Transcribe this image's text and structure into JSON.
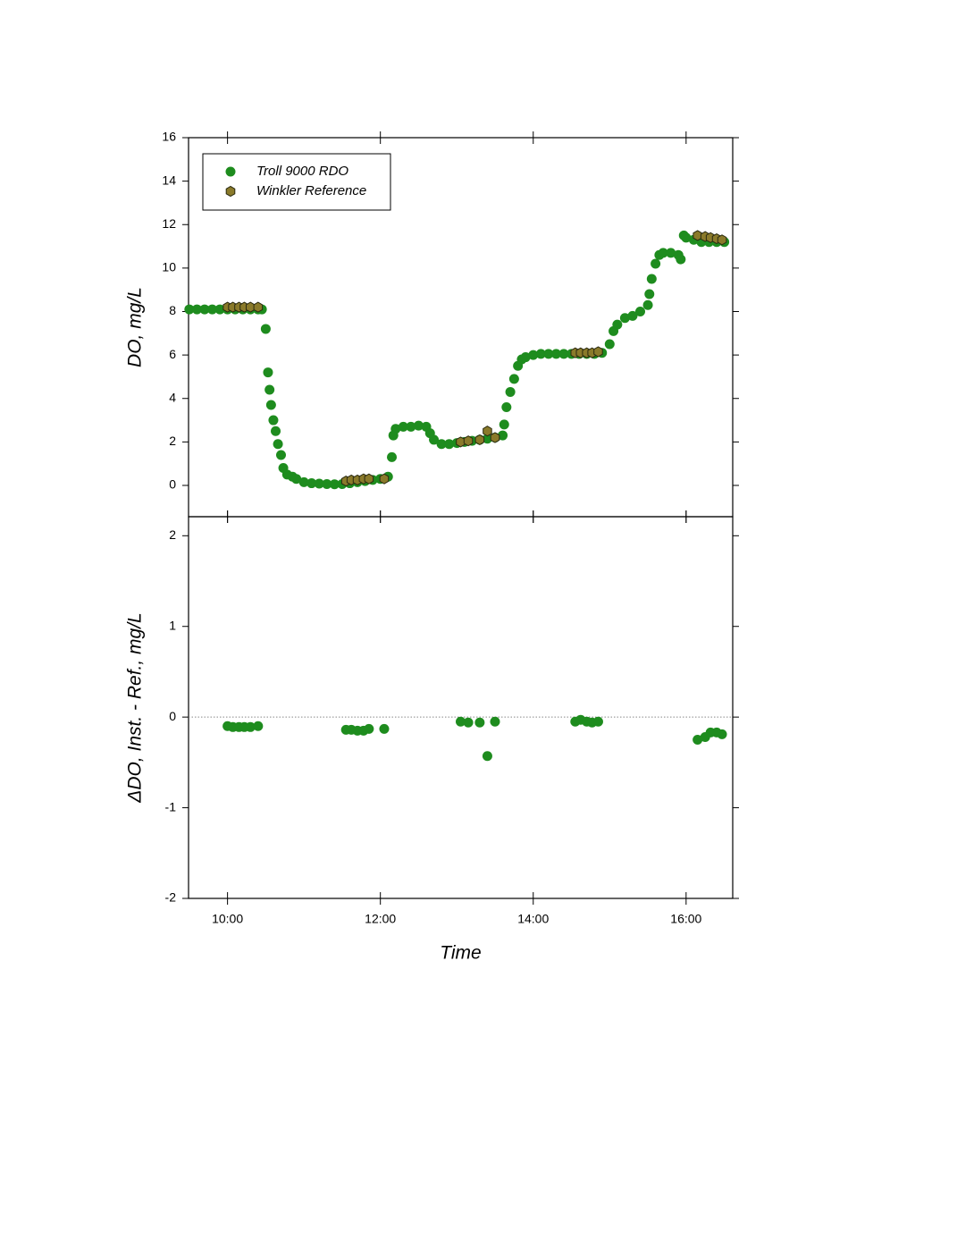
{
  "chart_data": [
    {
      "type": "scatter",
      "ylabel": "DO, mg/L",
      "ylim": [
        -1.44,
        16
      ],
      "yticks": [
        0,
        2,
        4,
        6,
        8,
        10,
        12,
        14,
        16
      ],
      "legend": "upper left",
      "series": [
        {
          "name": "Troll 9000 RDO",
          "color": "#1e8c1e",
          "marker": "circle",
          "x": [
            9.5,
            9.6,
            9.7,
            9.8,
            9.9,
            10.0,
            10.1,
            10.2,
            10.3,
            10.4,
            10.45,
            10.5,
            10.53,
            10.55,
            10.57,
            10.6,
            10.63,
            10.66,
            10.7,
            10.73,
            10.78,
            10.85,
            10.9,
            11.0,
            11.1,
            11.2,
            11.3,
            11.4,
            11.5,
            11.6,
            11.7,
            11.8,
            11.9,
            12.0,
            12.1,
            12.15,
            12.17,
            12.2,
            12.3,
            12.4,
            12.5,
            12.6,
            12.65,
            12.7,
            12.8,
            12.9,
            13.0,
            13.1,
            13.2,
            13.3,
            13.4,
            13.5,
            13.6,
            13.62,
            13.65,
            13.7,
            13.75,
            13.8,
            13.85,
            13.9,
            14.0,
            14.1,
            14.2,
            14.3,
            14.4,
            14.5,
            14.6,
            14.7,
            14.8,
            14.9,
            15.0,
            15.05,
            15.1,
            15.2,
            15.3,
            15.4,
            15.5,
            15.52,
            15.55,
            15.6,
            15.65,
            15.7,
            15.8,
            15.9,
            15.93,
            15.97,
            16.0,
            16.1,
            16.2,
            16.3,
            16.4,
            16.5
          ],
          "values": [
            8.1,
            8.1,
            8.1,
            8.1,
            8.1,
            8.1,
            8.1,
            8.1,
            8.1,
            8.1,
            8.1,
            7.2,
            5.2,
            4.4,
            3.7,
            3.0,
            2.5,
            1.9,
            1.4,
            0.8,
            0.5,
            0.4,
            0.3,
            0.15,
            0.1,
            0.08,
            0.06,
            0.05,
            0.06,
            0.1,
            0.15,
            0.2,
            0.25,
            0.3,
            0.4,
            1.3,
            2.3,
            2.6,
            2.7,
            2.7,
            2.75,
            2.7,
            2.4,
            2.1,
            1.9,
            1.9,
            1.95,
            2.0,
            2.05,
            2.1,
            2.15,
            2.2,
            2.3,
            2.8,
            3.6,
            4.3,
            4.9,
            5.5,
            5.8,
            5.9,
            6.0,
            6.05,
            6.05,
            6.05,
            6.05,
            6.05,
            6.05,
            6.05,
            6.05,
            6.1,
            6.5,
            7.1,
            7.4,
            7.7,
            7.8,
            8.0,
            8.3,
            8.8,
            9.5,
            10.2,
            10.6,
            10.7,
            10.7,
            10.6,
            10.4,
            11.5,
            11.4,
            11.3,
            11.2,
            11.2,
            11.2,
            11.2
          ]
        },
        {
          "name": "Winkler Reference",
          "color": "#8a7a2a",
          "marker": "hexagon",
          "x": [
            10.0,
            10.07,
            10.15,
            10.22,
            10.3,
            10.4,
            11.55,
            11.62,
            11.7,
            11.78,
            11.85,
            12.05,
            13.05,
            13.15,
            13.3,
            13.4,
            13.5,
            14.55,
            14.62,
            14.7,
            14.77,
            14.85,
            16.15,
            16.25,
            16.32,
            16.4,
            16.47
          ],
          "values": [
            8.2,
            8.2,
            8.2,
            8.2,
            8.2,
            8.2,
            0.2,
            0.25,
            0.25,
            0.3,
            0.3,
            0.3,
            2.0,
            2.05,
            2.1,
            2.5,
            2.2,
            6.1,
            6.1,
            6.1,
            6.1,
            6.15,
            11.5,
            11.45,
            11.4,
            11.35,
            11.3
          ]
        }
      ]
    },
    {
      "type": "scatter",
      "ylabel": "ΔDO, Inst. - Ref., mg/L",
      "xlabel": "Time",
      "xlim": [
        9.49,
        16.61
      ],
      "xticks": [
        {
          "value": 10,
          "label": "10:00"
        },
        {
          "value": 12,
          "label": "12:00"
        },
        {
          "value": 14,
          "label": "14:00"
        },
        {
          "value": 16,
          "label": "16:00"
        }
      ],
      "ylim": [
        -2,
        2.21
      ],
      "yticks": [
        -2,
        -1,
        0,
        1,
        2
      ],
      "hline": 0,
      "series": [
        {
          "color": "#1e8c1e",
          "marker": "circle",
          "x": [
            10.0,
            10.07,
            10.15,
            10.22,
            10.3,
            10.4,
            11.55,
            11.62,
            11.7,
            11.78,
            11.85,
            12.05,
            13.05,
            13.15,
            13.3,
            13.4,
            13.5,
            14.55,
            14.62,
            14.7,
            14.77,
            14.85,
            16.15,
            16.25,
            16.32,
            16.4,
            16.47
          ],
          "values": [
            -0.1,
            -0.11,
            -0.11,
            -0.11,
            -0.11,
            -0.1,
            -0.14,
            -0.14,
            -0.15,
            -0.15,
            -0.13,
            -0.13,
            -0.05,
            -0.06,
            -0.06,
            -0.43,
            -0.05,
            -0.05,
            -0.03,
            -0.05,
            -0.06,
            -0.05,
            -0.25,
            -0.22,
            -0.17,
            -0.17,
            -0.19
          ]
        }
      ]
    }
  ]
}
